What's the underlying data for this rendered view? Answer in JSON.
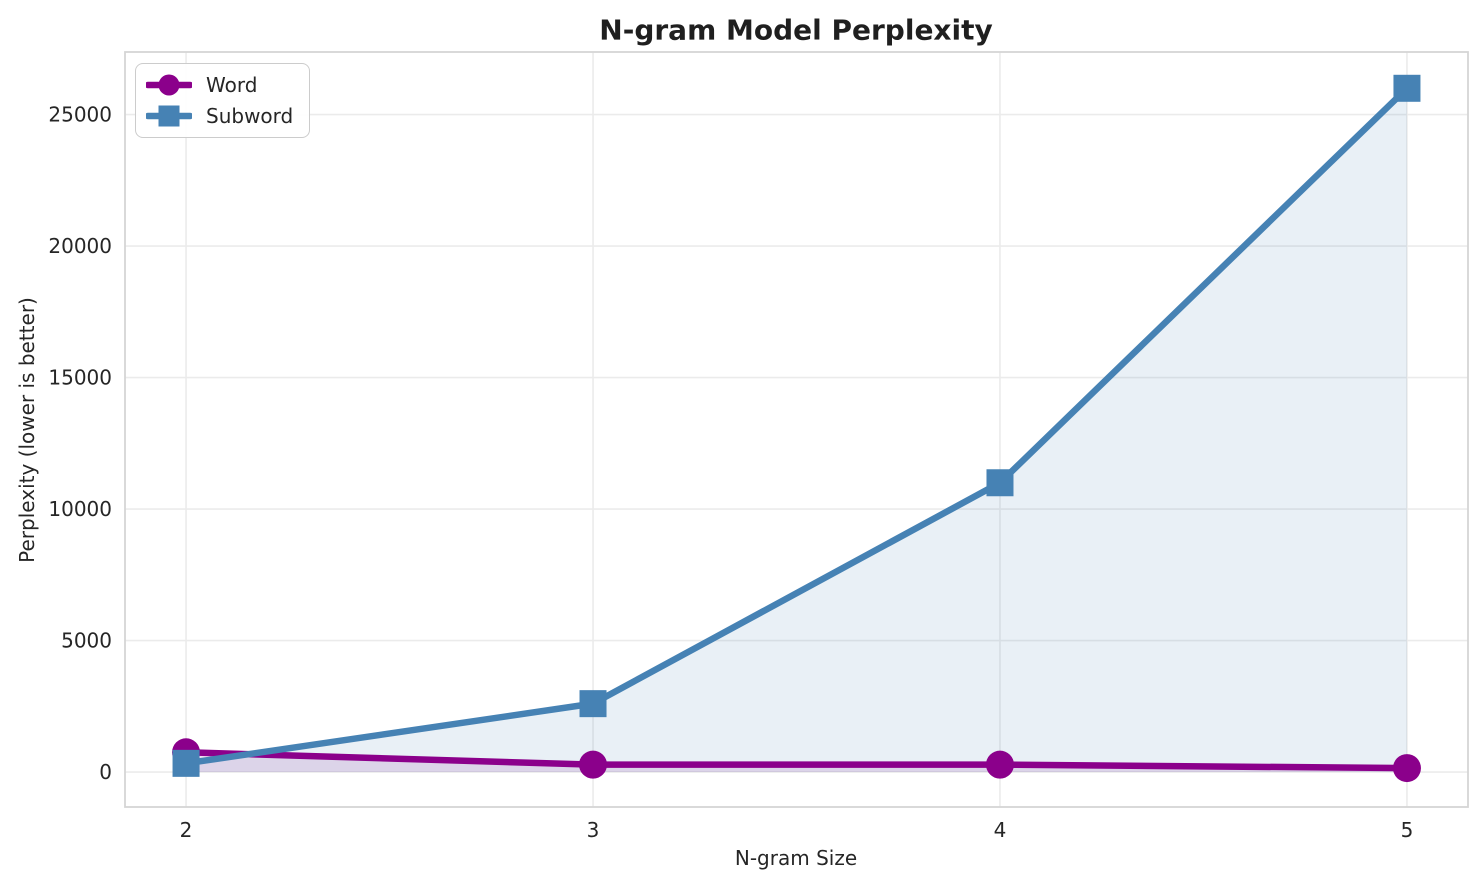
{
  "chart_data": {
    "type": "line",
    "title": "N-gram Model Perplexity",
    "xlabel": "N-gram Size",
    "ylabel": "Perplexity (lower is better)",
    "x": [
      2,
      3,
      4,
      5
    ],
    "series": [
      {
        "name": "Word",
        "color": "#8B008B",
        "marker": "circle",
        "values": [
          750,
          280,
          280,
          150
        ]
      },
      {
        "name": "Subword",
        "color": "#4682B4",
        "marker": "square",
        "values": [
          330,
          2600,
          11000,
          26000
        ]
      }
    ],
    "x_ticks": [
      2,
      3,
      4,
      5
    ],
    "y_ticks": [
      0,
      5000,
      10000,
      15000,
      20000,
      25000
    ],
    "xlim": [
      1.85,
      5.15
    ],
    "ylim": [
      -1330,
      27380
    ],
    "grid": true,
    "fill_to_zero": true,
    "fill_alpha": 0.12,
    "legend_position": "upper-left",
    "colors": {
      "background": "#ffffff",
      "grid": "#ebebeb",
      "spine": "#d5d5d5",
      "text": "#262626",
      "title": "#1f1f1f"
    }
  }
}
